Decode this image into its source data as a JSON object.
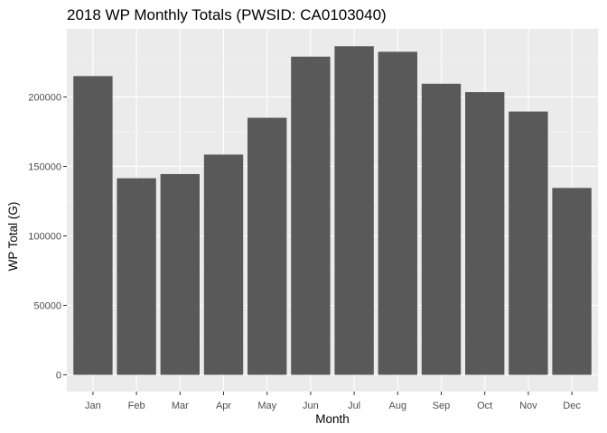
{
  "chart_data": {
    "type": "bar",
    "title": "2018 WP Monthly Totals (PWSID: CA0103040)",
    "xlabel": "Month",
    "ylabel": "WP Total (G)",
    "categories": [
      "Jan",
      "Feb",
      "Mar",
      "Apr",
      "May",
      "Jun",
      "Jul",
      "Aug",
      "Sep",
      "Oct",
      "Nov",
      "Dec"
    ],
    "values": [
      215000,
      141500,
      144500,
      158500,
      185000,
      229000,
      236500,
      232500,
      209500,
      203500,
      189500,
      134500
    ],
    "yticks": [
      0,
      50000,
      100000,
      150000,
      200000
    ],
    "ytick_labels": [
      "0",
      "50000",
      "100000",
      "150000",
      "200000"
    ],
    "ylim": [
      -12000,
      249000
    ],
    "grid": true,
    "legend": "none",
    "colors": {
      "bar": "#595959",
      "panel": "#ebebeb",
      "grid_major": "#ffffff",
      "grid_minor": "#f5f5f5"
    }
  }
}
